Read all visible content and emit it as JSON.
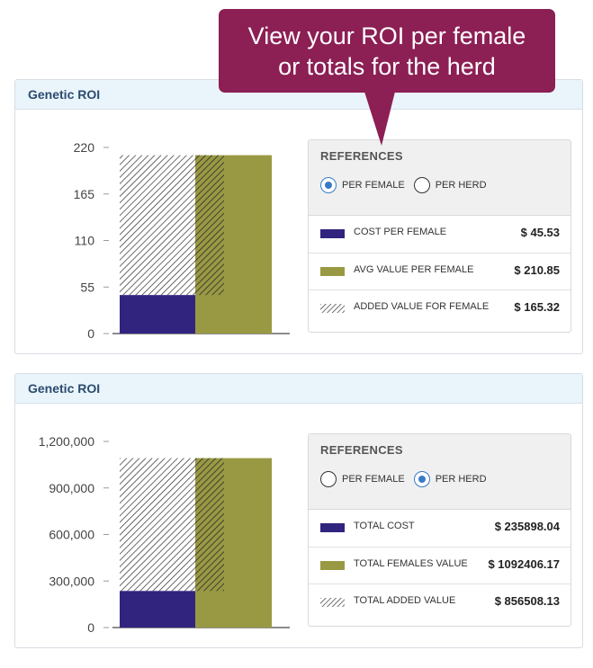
{
  "callout": {
    "line1": "View your ROI per female",
    "line2": "or totals for the herd"
  },
  "colors": {
    "cost": "#30247f",
    "value": "#999944",
    "hatch": "#2b2b2b",
    "accent": "#8c1f54",
    "radio": "#3a7bc8"
  },
  "panels": [
    {
      "title": "Genetic ROI",
      "refs": {
        "title": "REFERENCES",
        "radios": [
          {
            "label": "PER FEMALE",
            "checked": true
          },
          {
            "label": "PER HERD",
            "checked": false
          }
        ],
        "rows": [
          {
            "label": "COST PER FEMALE",
            "value": "$ 45.53",
            "swatch": "cost"
          },
          {
            "label": "AVG VALUE PER FEMALE",
            "value": "$ 210.85",
            "swatch": "value"
          },
          {
            "label": "ADDED VALUE FOR FEMALE",
            "value": "$ 165.32",
            "swatch": "hatch"
          }
        ]
      }
    },
    {
      "title": "Genetic ROI",
      "refs": {
        "title": "REFERENCES",
        "radios": [
          {
            "label": "PER FEMALE",
            "checked": false
          },
          {
            "label": "PER HERD",
            "checked": true
          }
        ],
        "rows": [
          {
            "label": "TOTAL COST",
            "value": "$ 235898.04",
            "swatch": "cost"
          },
          {
            "label": "TOTAL FEMALES VALUE",
            "value": "$ 1092406.17",
            "swatch": "value"
          },
          {
            "label": "TOTAL ADDED VALUE",
            "value": "$ 856508.13",
            "swatch": "hatch"
          }
        ]
      }
    }
  ],
  "chart_data": [
    {
      "type": "bar",
      "title": "",
      "xlabel": "",
      "ylabel": "",
      "ylim": [
        0,
        220
      ],
      "yticks": [
        0,
        55,
        110,
        165,
        220
      ],
      "ytick_labels": [
        "0",
        "55",
        "110",
        "165",
        "220"
      ],
      "grid": false,
      "bars": {
        "cost": 45.53,
        "value": 210.85,
        "added": 165.32
      }
    },
    {
      "type": "bar",
      "title": "",
      "xlabel": "",
      "ylabel": "",
      "ylim": [
        0,
        1200000
      ],
      "yticks": [
        0,
        300000,
        600000,
        900000,
        1200000
      ],
      "ytick_labels": [
        "0",
        "300,000",
        "600,000",
        "900,000",
        "1,200,000"
      ],
      "grid": false,
      "bars": {
        "cost": 235898.04,
        "value": 1092406.17,
        "added": 856508.13
      }
    }
  ]
}
